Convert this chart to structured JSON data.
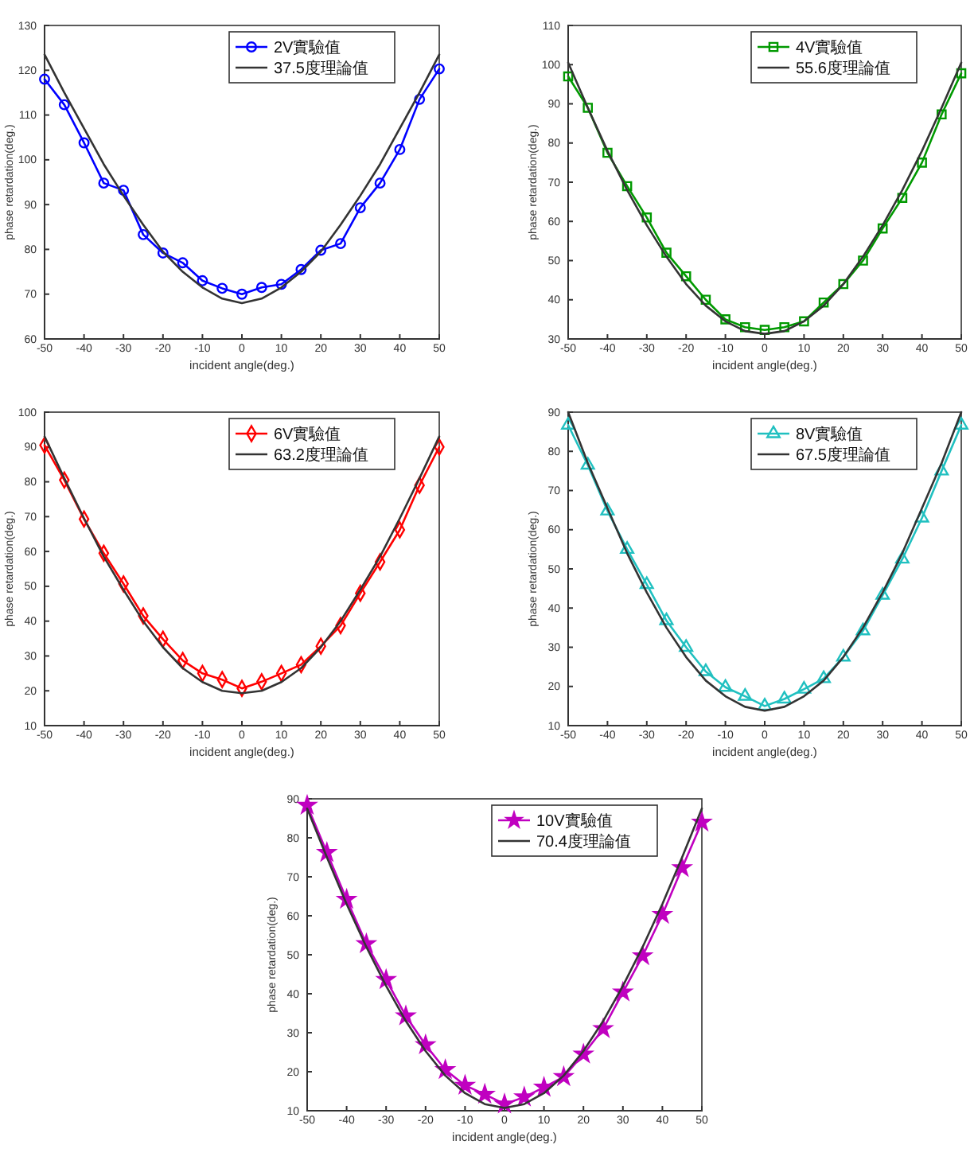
{
  "chart_data": [
    {
      "type": "line",
      "xlabel": "incident angle(deg.)",
      "ylabel": "phase retardation(deg.)",
      "x": [
        -50,
        -45,
        -40,
        -35,
        -30,
        -25,
        -20,
        -15,
        -10,
        -5,
        0,
        5,
        10,
        15,
        20,
        25,
        30,
        35,
        40,
        45,
        50
      ],
      "xlim": [
        -50,
        50
      ],
      "xticks": [
        -50,
        -40,
        -30,
        -20,
        -10,
        0,
        10,
        20,
        30,
        40,
        50
      ],
      "ylim": [
        60,
        130
      ],
      "yticks": [
        60,
        70,
        80,
        90,
        100,
        110,
        120,
        130
      ],
      "grid": false,
      "legend": "top right",
      "series": [
        {
          "name": "2V實驗值",
          "color": "#0000ff",
          "marker": "circle",
          "values": [
            118,
            112.3,
            103.8,
            94.8,
            93.2,
            83.3,
            79.2,
            77,
            73,
            71.3,
            70,
            71.5,
            72.2,
            75.5,
            79.8,
            81.3,
            89.3,
            94.8,
            102.3,
            113.5,
            120.3
          ]
        },
        {
          "name": "37.5度理論值",
          "color": "#333333",
          "marker": "none",
          "values": [
            123.5,
            115,
            107,
            99,
            92,
            85.5,
            79.5,
            75,
            71.5,
            69,
            68,
            69,
            71.5,
            75,
            79.5,
            85.5,
            92,
            99,
            107,
            115,
            123.5
          ]
        }
      ]
    },
    {
      "type": "line",
      "xlabel": "incident angle(deg.)",
      "ylabel": "phase retardation(deg.)",
      "x": [
        -50,
        -45,
        -40,
        -35,
        -30,
        -25,
        -20,
        -15,
        -10,
        -5,
        0,
        5,
        10,
        15,
        20,
        25,
        30,
        35,
        40,
        45,
        50
      ],
      "xlim": [
        -50,
        50
      ],
      "xticks": [
        -50,
        -40,
        -30,
        -20,
        -10,
        0,
        10,
        20,
        30,
        40,
        50
      ],
      "ylim": [
        30,
        110
      ],
      "yticks": [
        30,
        40,
        50,
        60,
        70,
        80,
        90,
        100,
        110
      ],
      "grid": false,
      "legend": "top right",
      "series": [
        {
          "name": "4V實驗值",
          "color": "#009900",
          "marker": "square",
          "values": [
            97,
            89,
            77.5,
            69,
            61,
            52,
            46,
            40,
            35,
            33,
            32.3,
            33,
            34.5,
            39.3,
            44,
            50,
            58.2,
            66,
            75,
            87.3,
            97.8
          ]
        },
        {
          "name": "55.6度理論值",
          "color": "#333333",
          "marker": "none",
          "values": [
            100.5,
            89,
            78,
            68,
            59,
            51,
            44,
            38.5,
            34.5,
            32,
            31.3,
            32,
            34.5,
            38.5,
            44,
            51,
            59,
            68,
            78,
            89,
            100.5
          ]
        }
      ]
    },
    {
      "type": "line",
      "xlabel": "incident angle(deg.)",
      "ylabel": "phase retardation(deg.)",
      "x": [
        -50,
        -45,
        -40,
        -35,
        -30,
        -25,
        -20,
        -15,
        -10,
        -5,
        0,
        5,
        10,
        15,
        20,
        25,
        30,
        35,
        40,
        45,
        50
      ],
      "xlim": [
        -50,
        50
      ],
      "xticks": [
        -50,
        -40,
        -30,
        -20,
        -10,
        0,
        10,
        20,
        30,
        40,
        50
      ],
      "ylim": [
        10,
        100
      ],
      "yticks": [
        10,
        20,
        30,
        40,
        50,
        60,
        70,
        80,
        90,
        100
      ],
      "grid": false,
      "legend": "top right",
      "series": [
        {
          "name": "6V實驗值",
          "color": "#ff0000",
          "marker": "diamond",
          "values": [
            90.5,
            80.5,
            69.3,
            59.5,
            50.7,
            41.5,
            34.8,
            28.7,
            25,
            23.2,
            20.7,
            22.6,
            25,
            27.5,
            32.8,
            38.7,
            48,
            57,
            66.2,
            79,
            90
          ]
        },
        {
          "name": "63.2度理論值",
          "color": "#333333",
          "marker": "none",
          "values": [
            93,
            81,
            69.5,
            58.5,
            49,
            40,
            32.5,
            26.5,
            22.5,
            20,
            19.3,
            20,
            22.5,
            26.5,
            32.5,
            40,
            49,
            58.5,
            69.5,
            81,
            93
          ]
        }
      ]
    },
    {
      "type": "line",
      "xlabel": "incident angle(deg.)",
      "ylabel": "phase retardation(deg.)",
      "x": [
        -50,
        -45,
        -40,
        -35,
        -30,
        -25,
        -20,
        -15,
        -10,
        -5,
        0,
        5,
        10,
        15,
        20,
        25,
        30,
        35,
        40,
        45,
        50
      ],
      "xlim": [
        -50,
        50
      ],
      "xticks": [
        -50,
        -40,
        -30,
        -20,
        -10,
        0,
        10,
        20,
        30,
        40,
        50
      ],
      "ylim": [
        10,
        90
      ],
      "yticks": [
        10,
        20,
        30,
        40,
        50,
        60,
        70,
        80,
        90
      ],
      "grid": false,
      "legend": "top right",
      "series": [
        {
          "name": "8V實驗值",
          "color": "#20c0c0",
          "marker": "triangle",
          "values": [
            86.7,
            76.5,
            64.8,
            55,
            46,
            36.8,
            30,
            23.8,
            19.8,
            17.5,
            15,
            16.8,
            19.3,
            22,
            27.5,
            34.2,
            43.3,
            52.5,
            63,
            75,
            86.7
          ]
        },
        {
          "name": "67.5度理論值",
          "color": "#333333",
          "marker": "none",
          "values": [
            90,
            77,
            65.5,
            54,
            44,
            35,
            27.5,
            21.5,
            17.5,
            14.8,
            13.8,
            14.8,
            17.5,
            21.5,
            27.5,
            35,
            44,
            54,
            65.5,
            77,
            90
          ]
        }
      ]
    },
    {
      "type": "line",
      "xlabel": "incident angle(deg.)",
      "ylabel": "phase retardation(deg.)",
      "x": [
        -50,
        -45,
        -40,
        -35,
        -30,
        -25,
        -20,
        -15,
        -10,
        -5,
        0,
        5,
        10,
        15,
        20,
        25,
        30,
        35,
        40,
        45,
        50
      ],
      "xlim": [
        -50,
        50
      ],
      "xticks": [
        -50,
        -40,
        -30,
        -20,
        -10,
        0,
        10,
        20,
        30,
        40,
        50
      ],
      "ylim": [
        10,
        90
      ],
      "yticks": [
        10,
        20,
        30,
        40,
        50,
        60,
        70,
        80,
        90
      ],
      "grid": false,
      "legend": "top right",
      "series": [
        {
          "name": "10V實驗值",
          "color": "#c000c0",
          "marker": "star",
          "values": [
            88.3,
            76.2,
            64.2,
            52.8,
            43.6,
            34.3,
            26.9,
            20.5,
            16.5,
            14.2,
            11.7,
            13.5,
            16,
            18.7,
            24.5,
            31,
            40.4,
            49.7,
            60.3,
            72.3,
            84
          ]
        },
        {
          "name": "70.4度理論值",
          "color": "#333333",
          "marker": "none",
          "values": [
            87.5,
            75,
            63,
            52,
            42,
            33,
            25.3,
            19,
            14.5,
            11.7,
            10.7,
            11.7,
            14.5,
            19,
            25.3,
            33,
            42,
            52,
            63,
            75,
            87.5
          ]
        }
      ]
    }
  ]
}
